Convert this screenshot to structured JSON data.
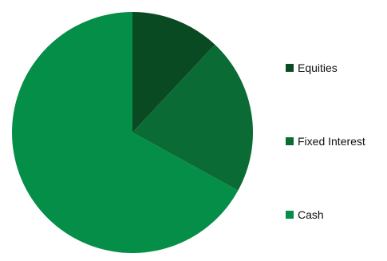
{
  "chart_data": {
    "type": "pie",
    "title": "",
    "legend_position": "right",
    "slices": [
      {
        "label": "Equities",
        "value": 12,
        "color": "#0a4a22"
      },
      {
        "label": "Fixed Interest",
        "value": 21,
        "color": "#0b6b35"
      },
      {
        "label": "Cash",
        "value": 67,
        "color": "#058e47"
      }
    ]
  }
}
